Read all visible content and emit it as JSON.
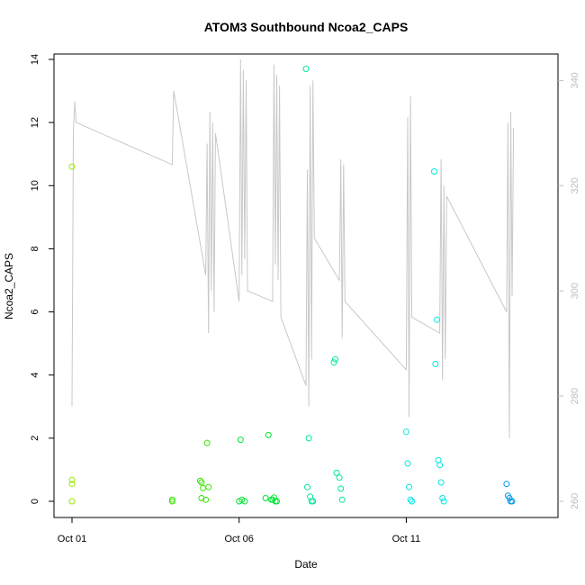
{
  "chart_data": {
    "type": "scatter",
    "title": "ATOM3 Southbound Ncoa2_CAPS",
    "xlabel": "Date",
    "ylabel": "Ncoa2_CAPS",
    "xlim": [
      "2023-10-01T00:00",
      "2023-10-15T00:00"
    ],
    "x_ticks": [
      {
        "value": "2023-10-01T00:00",
        "label": "Oct 01"
      },
      {
        "value": "2023-10-06T00:00",
        "label": "Oct 06"
      },
      {
        "value": "2023-10-11T00:00",
        "label": "Oct 11"
      }
    ],
    "ylim": [
      0,
      14
    ],
    "y_ticks": [
      0,
      2,
      4,
      6,
      8,
      10,
      12,
      14
    ],
    "y2lim": [
      260,
      344
    ],
    "y2_ticks": [
      260,
      280,
      300,
      320,
      340
    ],
    "grid": false,
    "colors": {
      "points_gradient": [
        "#99e600",
        "#33e600",
        "#00e633",
        "#00e699",
        "#00e6e6",
        "#0099e6"
      ],
      "line": "#c8c8c8",
      "axis": "#000000",
      "secondary_axis": "#bdbdbd"
    },
    "series": [
      {
        "kind": "points",
        "x": [
          "2023-10-01T00:00",
          "2023-10-01T00:00",
          "2023-10-01T00:00",
          "2023-10-01T00:00",
          "2023-10-04T00:00",
          "2023-10-04T00:00",
          "2023-10-04T20:00",
          "2023-10-04T21:00",
          "2023-10-04T21:00",
          "2023-10-04T22:00",
          "2023-10-05T00:00",
          "2023-10-05T01:00",
          "2023-10-05T02:00",
          "2023-10-06T00:00",
          "2023-10-06T01:00",
          "2023-10-06T02:00",
          "2023-10-06T04:00",
          "2023-10-06T19:00",
          "2023-10-06T21:00",
          "2023-10-06T23:00",
          "2023-10-07T00:00",
          "2023-10-07T01:00",
          "2023-10-07T02:00",
          "2023-10-07T03:00",
          "2023-10-08T00:00",
          "2023-10-08T01:00",
          "2023-10-08T02:00",
          "2023-10-08T03:00",
          "2023-10-08T04:00",
          "2023-10-08T05:00",
          "2023-10-08T20:00",
          "2023-10-08T21:00",
          "2023-10-08T22:00",
          "2023-10-09T00:00",
          "2023-10-09T01:00",
          "2023-10-09T02:00",
          "2023-10-11T00:00",
          "2023-10-11T01:00",
          "2023-10-11T02:00",
          "2023-10-11T03:00",
          "2023-10-11T04:00",
          "2023-10-11T20:00",
          "2023-10-11T21:00",
          "2023-10-11T22:00",
          "2023-10-11T23:00",
          "2023-10-12T00:00",
          "2023-10-12T01:00",
          "2023-10-12T02:00",
          "2023-10-12T03:00",
          "2023-10-14T00:00",
          "2023-10-14T01:00",
          "2023-10-14T02:00",
          "2023-10-14T03:00",
          "2023-10-14T04:00"
        ],
        "y": [
          10.6,
          0.68,
          0.55,
          0.0,
          0.0,
          0.05,
          0.65,
          0.6,
          0.1,
          0.42,
          0.05,
          1.85,
          0.45,
          0.0,
          1.95,
          0.05,
          0.0,
          0.1,
          2.1,
          0.05,
          0.05,
          0.12,
          0.0,
          0.0,
          13.7,
          0.45,
          2.0,
          0.15,
          0.0,
          0.0,
          4.4,
          4.5,
          0.9,
          0.75,
          0.4,
          0.05,
          2.2,
          1.2,
          0.45,
          0.05,
          0.0,
          10.45,
          4.35,
          5.75,
          1.3,
          1.15,
          0.6,
          0.1,
          0.0,
          0.55,
          0.18,
          0.1,
          0.0,
          0.0
        ],
        "color_index": [
          0,
          0,
          0,
          0,
          1,
          1,
          1,
          1,
          1,
          1,
          1,
          1,
          1,
          2,
          2,
          2,
          2,
          2,
          2,
          2,
          2,
          2,
          2,
          2,
          3,
          3,
          3,
          3,
          3,
          3,
          3,
          3,
          3,
          3,
          3,
          3,
          4,
          4,
          4,
          4,
          4,
          4,
          4,
          4,
          4,
          4,
          4,
          4,
          4,
          5,
          5,
          5,
          5,
          5
        ]
      },
      {
        "kind": "line",
        "axis": "right",
        "x": [
          "2023-10-01T00:00",
          "2023-10-01T01:00",
          "2023-10-01T02:00",
          "2023-10-01T03:00",
          "2023-10-04T00:00",
          "2023-10-04T01:00",
          "2023-10-05T00:00",
          "2023-10-05T01:00",
          "2023-10-05T02:00",
          "2023-10-05T03:00",
          "2023-10-05T04:00",
          "2023-10-05T05:00",
          "2023-10-05T06:00",
          "2023-10-05T07:00",
          "2023-10-06T00:00",
          "2023-10-06T01:00",
          "2023-10-06T02:00",
          "2023-10-06T03:00",
          "2023-10-06T04:00",
          "2023-10-06T05:00",
          "2023-10-06T06:00",
          "2023-10-07T00:00",
          "2023-10-07T01:00",
          "2023-10-07T02:00",
          "2023-10-07T03:00",
          "2023-10-07T04:00",
          "2023-10-07T05:00",
          "2023-10-07T06:00",
          "2023-10-08T00:00",
          "2023-10-08T01:00",
          "2023-10-08T02:00",
          "2023-10-08T03:00",
          "2023-10-08T04:00",
          "2023-10-08T05:00",
          "2023-10-08T06:00",
          "2023-10-09T00:00",
          "2023-10-09T01:00",
          "2023-10-09T02:00",
          "2023-10-09T03:00",
          "2023-10-09T04:00",
          "2023-10-11T00:00",
          "2023-10-11T01:00",
          "2023-10-11T02:00",
          "2023-10-11T03:00",
          "2023-10-11T04:00",
          "2023-10-12T00:00",
          "2023-10-12T01:00",
          "2023-10-12T02:00",
          "2023-10-12T03:00",
          "2023-10-12T04:00",
          "2023-10-12T05:00",
          "2023-10-14T00:00",
          "2023-10-14T01:00",
          "2023-10-14T02:00",
          "2023-10-14T03:00",
          "2023-10-14T04:00",
          "2023-10-14T05:00"
        ],
        "y": [
          278,
          330,
          336,
          332,
          324,
          338,
          303,
          328,
          292,
          334,
          300,
          332,
          296,
          330,
          298,
          344,
          303,
          342,
          306,
          340,
          300,
          298,
          343,
          305,
          341,
          302,
          339,
          295,
          282,
          323,
          278,
          339,
          287,
          340,
          310,
          302,
          325,
          291,
          324,
          298,
          285,
          333,
          276,
          337,
          295,
          292,
          325,
          283,
          320,
          287,
          318,
          296,
          332,
          272,
          334,
          299,
          331
        ]
      }
    ]
  }
}
